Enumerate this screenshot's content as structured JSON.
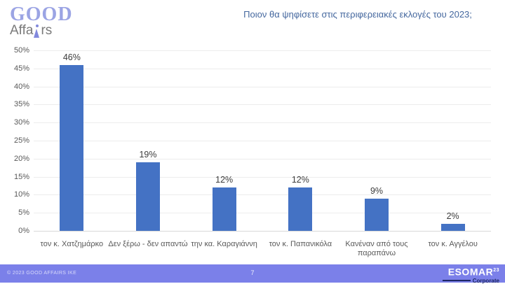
{
  "logo": {
    "line1": "GOOD",
    "affairs_pre": "Affa",
    "affairs_post": "rs"
  },
  "header": {
    "title": "Ποιον θα ψηφίσετε στις περιφερειακές εκλογές του 2023;"
  },
  "chart_data": {
    "type": "bar",
    "title": "Ποιον θα ψηφίσετε στις περιφερειακές εκλογές του 2023;",
    "categories": [
      "τον κ. Χατζημάρκο",
      "Δεν ξέρω - δεν απαντώ",
      "την κα. Καραγιάννη",
      "τον κ. Παπανικόλα",
      "Κανέναν από τους παραπάνω",
      "τον κ. Αγγέλου"
    ],
    "values": [
      46,
      19,
      12,
      12,
      9,
      2
    ],
    "value_labels": [
      "46%",
      "19%",
      "12%",
      "12%",
      "9%",
      "2%"
    ],
    "yticks": [
      "0%",
      "5%",
      "10%",
      "15%",
      "20%",
      "25%",
      "30%",
      "35%",
      "40%",
      "45%",
      "50%"
    ],
    "ylim": [
      0,
      50
    ],
    "xlabel": "",
    "ylabel": "",
    "grid": true,
    "legend": "none",
    "bar_color": "#4472C4"
  },
  "footer": {
    "copyright": "© 2023 GOOD AFFAIRS IKE",
    "page_number": "7",
    "esomar": {
      "name": "ESOMAR",
      "year": "23",
      "sub": "Corporate"
    }
  },
  "colors": {
    "bar": "#4472C4",
    "title_text": "#44679e",
    "axis_text": "#595959",
    "footer_bg": "#7b80e9",
    "logo_purple": "#9ba4e4",
    "esomar_navy": "#1d2766"
  }
}
